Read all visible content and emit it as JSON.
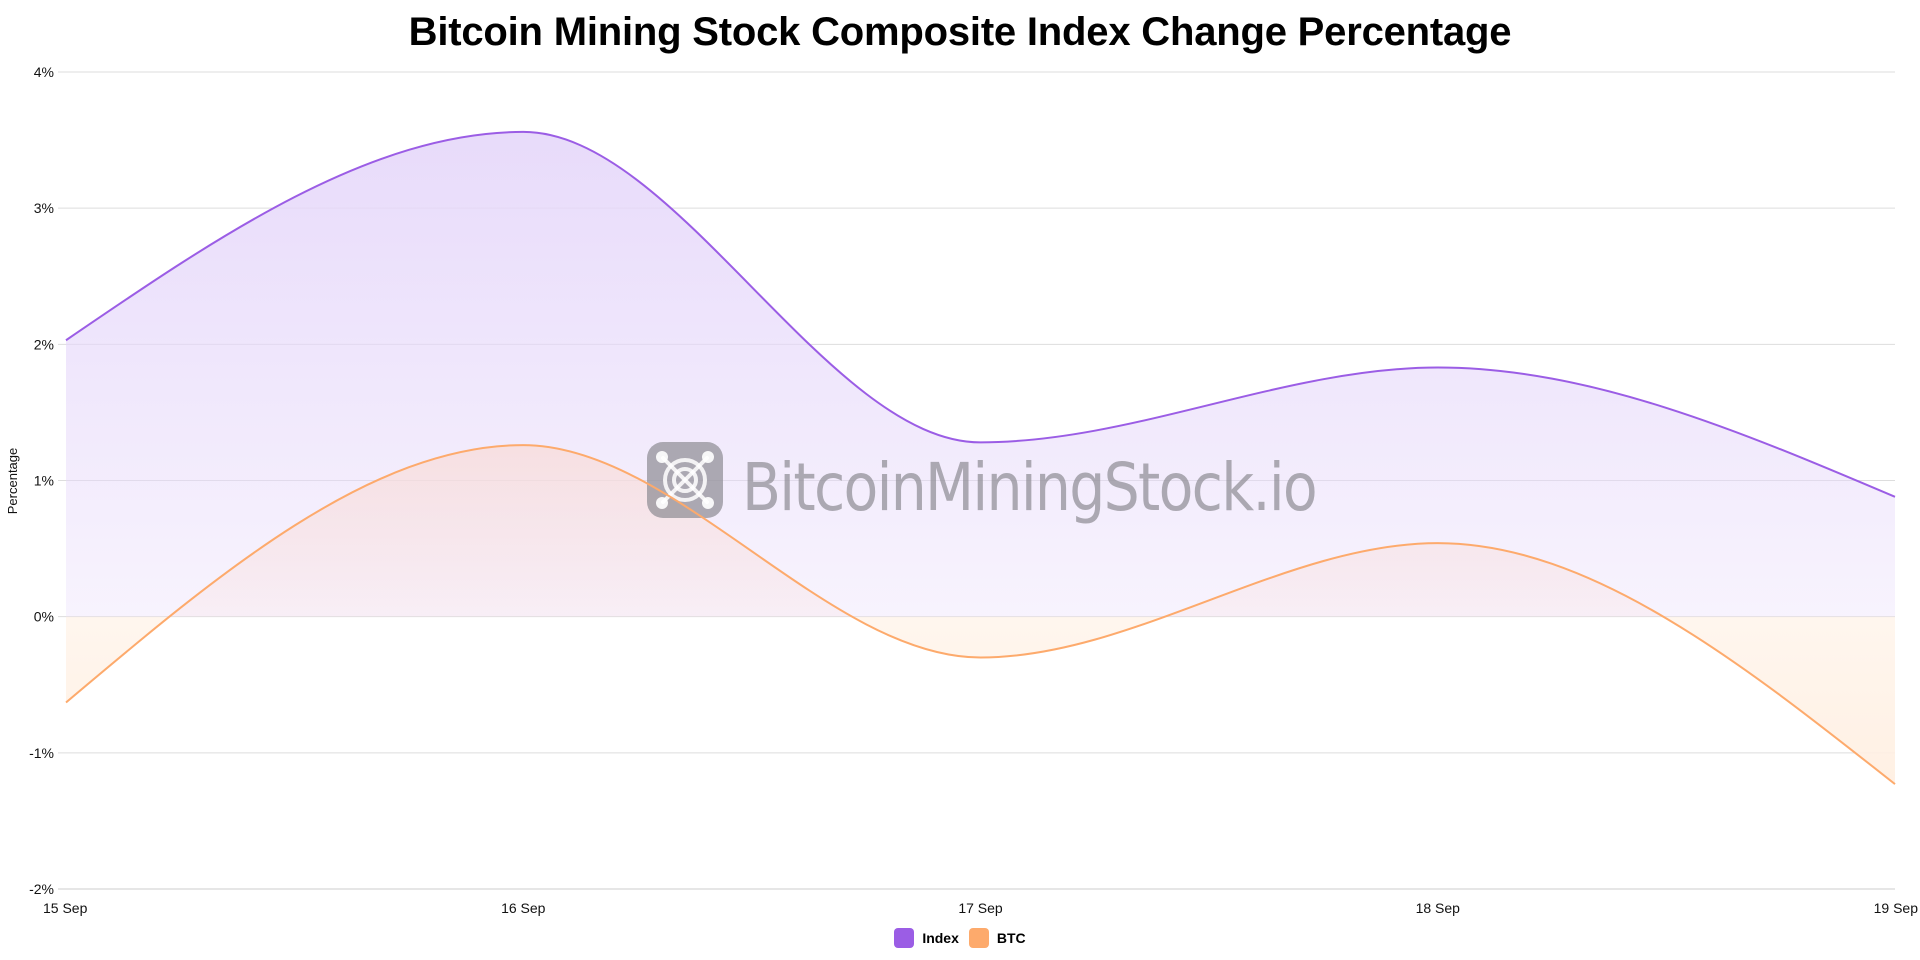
{
  "colors": {
    "index": "#9b5de5",
    "btc": "#fdaa6c",
    "index_fill": "#e6d8fa",
    "btc_fill_pos": "#f9dcd8",
    "btc_fill_neg": "#fff0e3",
    "grid": "#dddddd",
    "watermark": "#8f8d94"
  },
  "watermark": {
    "text": "BitcoinMiningStock.io",
    "icon": "mining-chip-icon"
  },
  "chart_data": {
    "type": "area",
    "title": "Bitcoin Mining Stock Composite Index Change Percentage",
    "xlabel": "",
    "ylabel": "Percentage",
    "categories": [
      "15 Sep",
      "16 Sep",
      "17 Sep",
      "18 Sep",
      "19 Sep"
    ],
    "series": [
      {
        "name": "Index",
        "values": [
          2.03,
          3.56,
          1.28,
          1.83,
          0.88
        ]
      },
      {
        "name": "BTC",
        "values": [
          -0.63,
          1.26,
          -0.3,
          0.54,
          -1.23
        ]
      }
    ],
    "ylim": [
      -2,
      4
    ],
    "yticks": [
      -2,
      -1,
      0,
      1,
      2,
      3,
      4
    ],
    "ytick_labels": [
      "-2%",
      "-1%",
      "0%",
      "1%",
      "2%",
      "3%",
      "4%"
    ],
    "grid": true,
    "legend_position": "bottom-center",
    "legend": [
      "Index",
      "BTC"
    ]
  }
}
